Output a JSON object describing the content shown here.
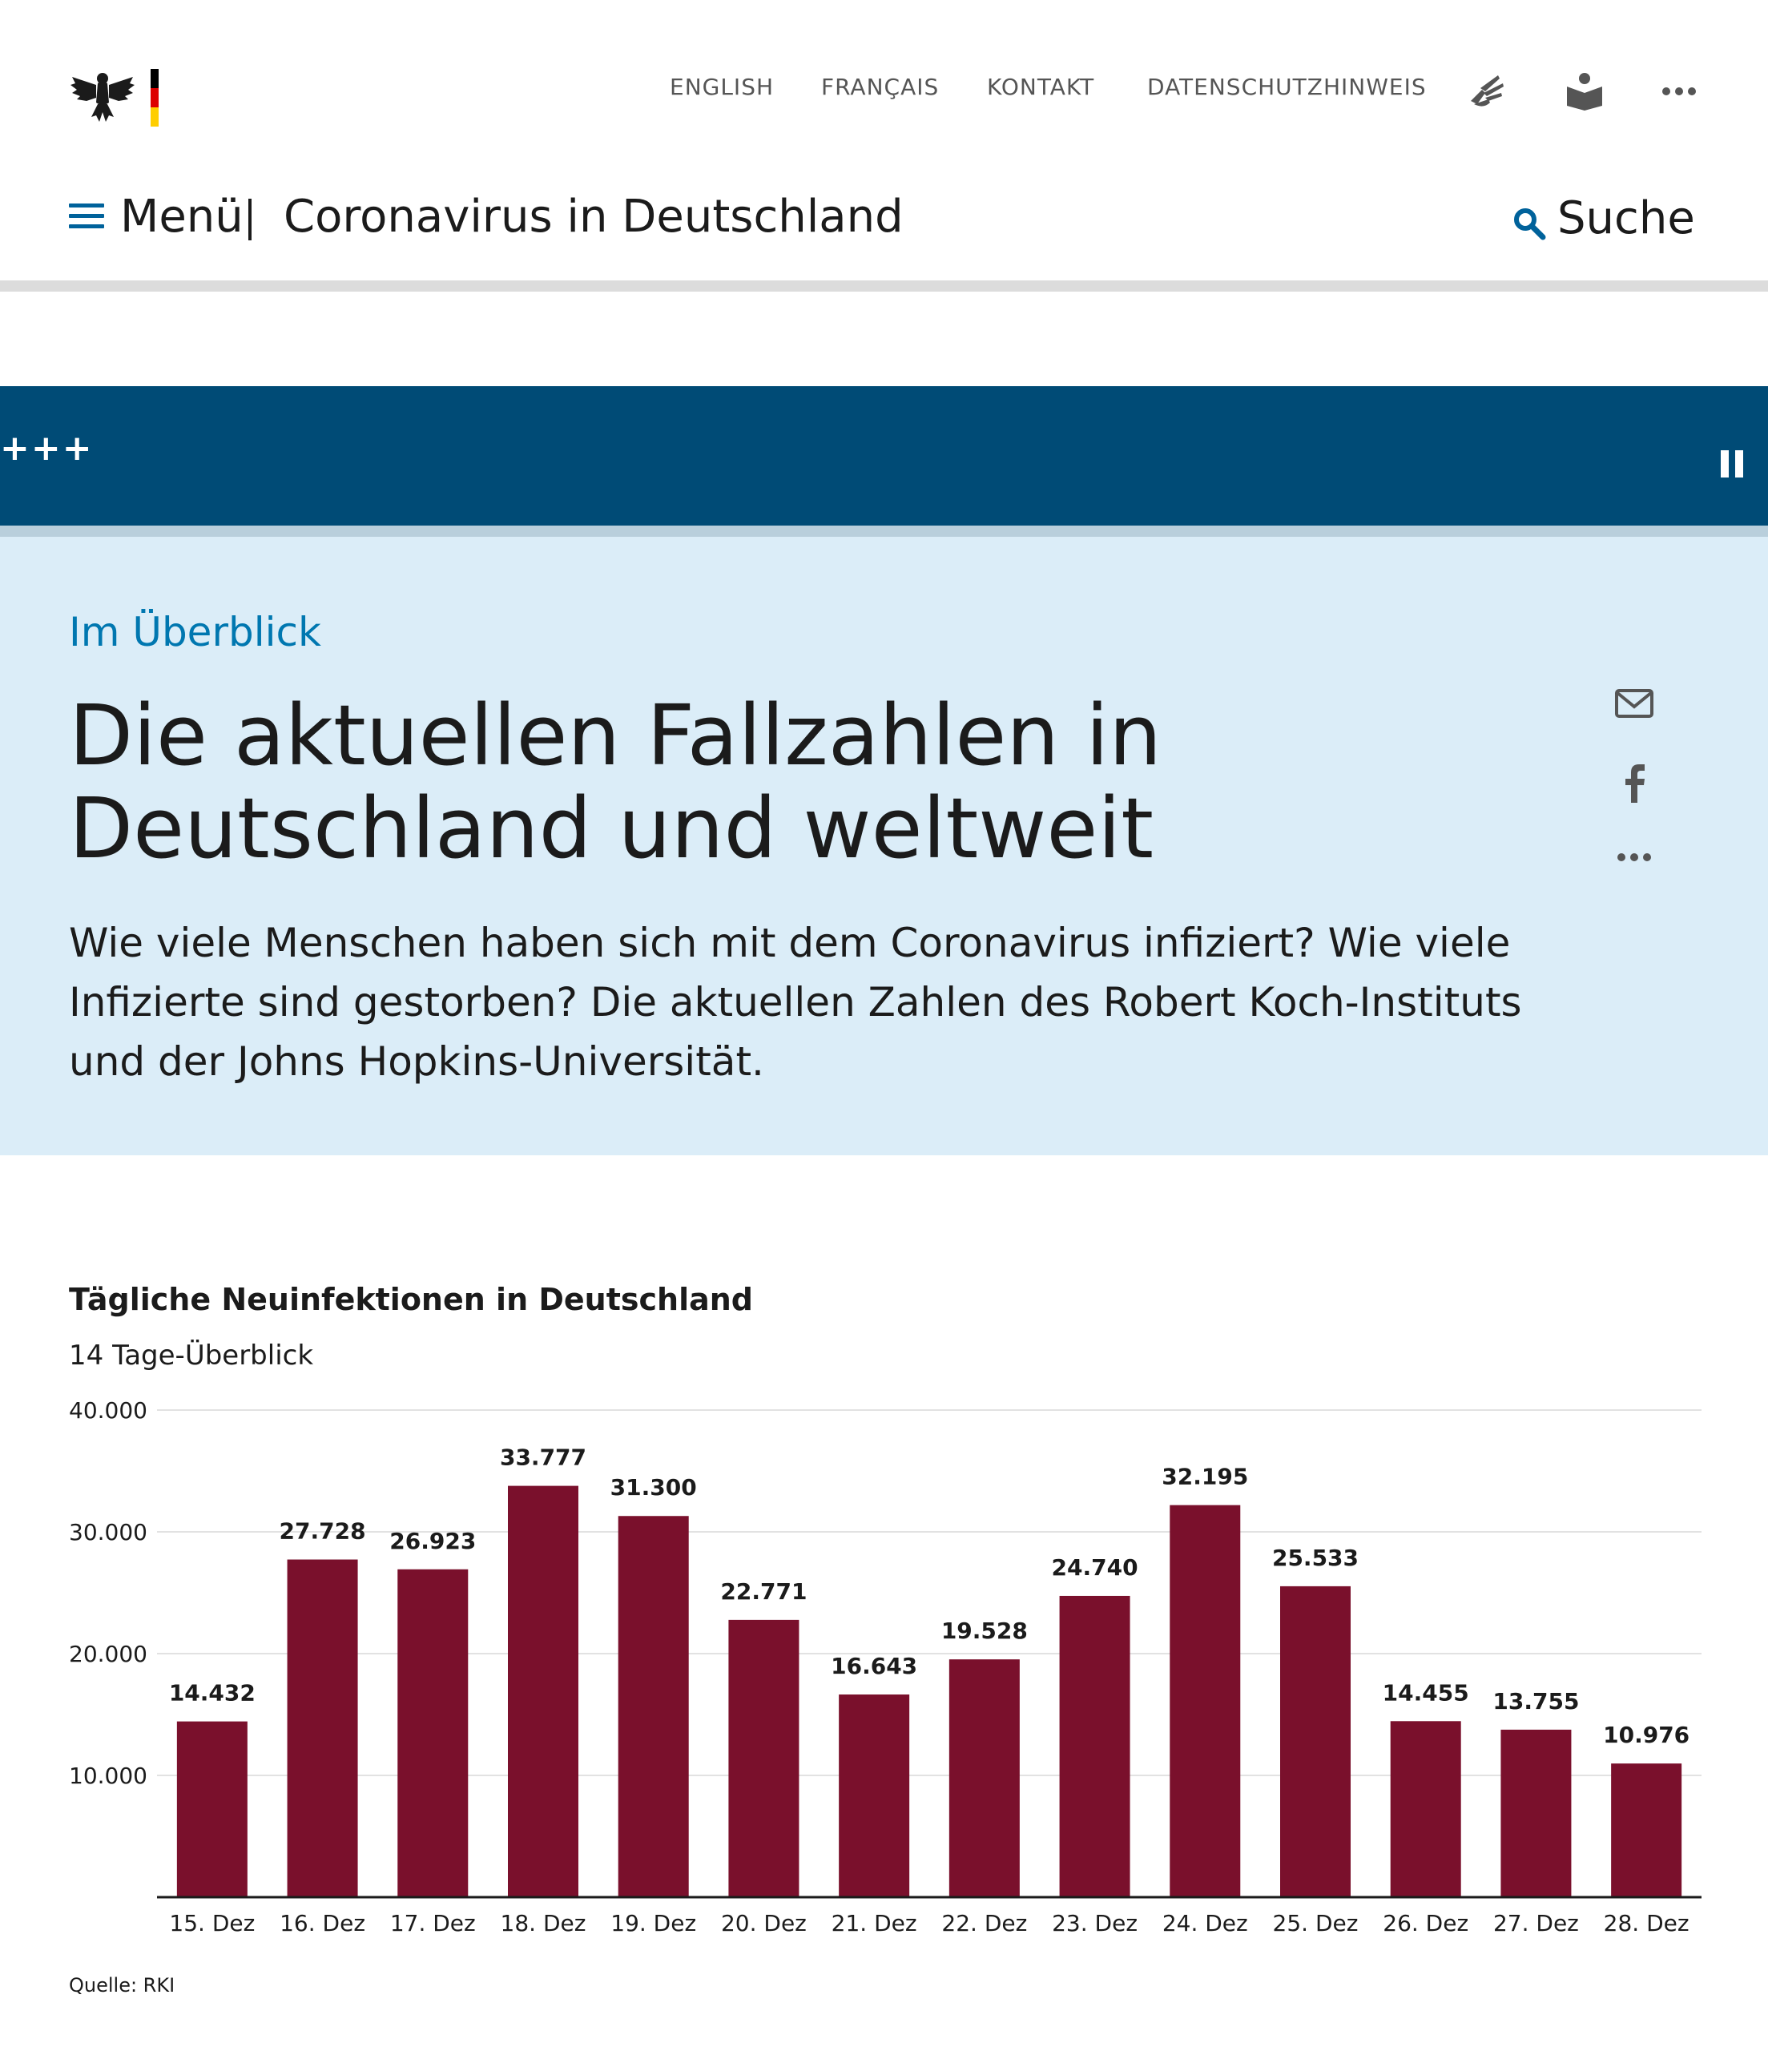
{
  "nav": {
    "english": "ENGLISH",
    "francais": "FRANÇAIS",
    "kontakt": "KONTAKT",
    "datenschutz": "DATENSCHUTZHINWEIS"
  },
  "header": {
    "menu_label": "Menü",
    "site_title": "Coronavirus in Deutschland",
    "search_label": "Suche"
  },
  "ticker": {
    "text": "+++"
  },
  "intro": {
    "kicker": "Im Überblick",
    "headline": "Die aktuellen Fallzahlen in Deutschland und weltweit",
    "lead": "Wie viele Menschen haben sich mit dem Coronavirus infiziert? Wie viele Infizierte sind gestorben? Die aktuellen Zahlen des Robert Koch-Instituts und der Johns Hopkins-Universität."
  },
  "icons": {
    "sign_language": "sign-language-icon",
    "easy_language": "easy-language-icon",
    "more": "more-icon",
    "mail": "mail-icon",
    "facebook": "facebook-icon",
    "search": "search-icon",
    "pause": "pause-icon"
  },
  "colors": {
    "bar": "#7a102c",
    "ticker_bg": "#004b76",
    "intro_bg": "#dbedf8",
    "accent": "#0077b0"
  },
  "chart_data": {
    "type": "bar",
    "title": "Tägliche Neuinfektionen in Deutschland",
    "subtitle": "14 Tage-Überblick",
    "categories": [
      "15. Dez",
      "16. Dez",
      "17. Dez",
      "18. Dez",
      "19. Dez",
      "20. Dez",
      "21. Dez",
      "22. Dez",
      "23. Dez",
      "24. Dez",
      "25. Dez",
      "26. Dez",
      "27. Dez",
      "28. Dez"
    ],
    "values": [
      14432,
      27728,
      26923,
      33777,
      31300,
      22771,
      16643,
      19528,
      24740,
      32195,
      25533,
      14455,
      13755,
      10976
    ],
    "value_labels": [
      "14.432",
      "27.728",
      "26.923",
      "33.777",
      "31.300",
      "22.771",
      "16.643",
      "19.528",
      "24.740",
      "32.195",
      "25.533",
      "14.455",
      "13.755",
      "10.976"
    ],
    "yticks": [
      10000,
      20000,
      30000,
      40000
    ],
    "ytick_labels": [
      "10.000",
      "20.000",
      "30.000",
      "40.000"
    ],
    "ylim": [
      0,
      40000
    ],
    "grid": true,
    "source": "Quelle: RKI"
  }
}
